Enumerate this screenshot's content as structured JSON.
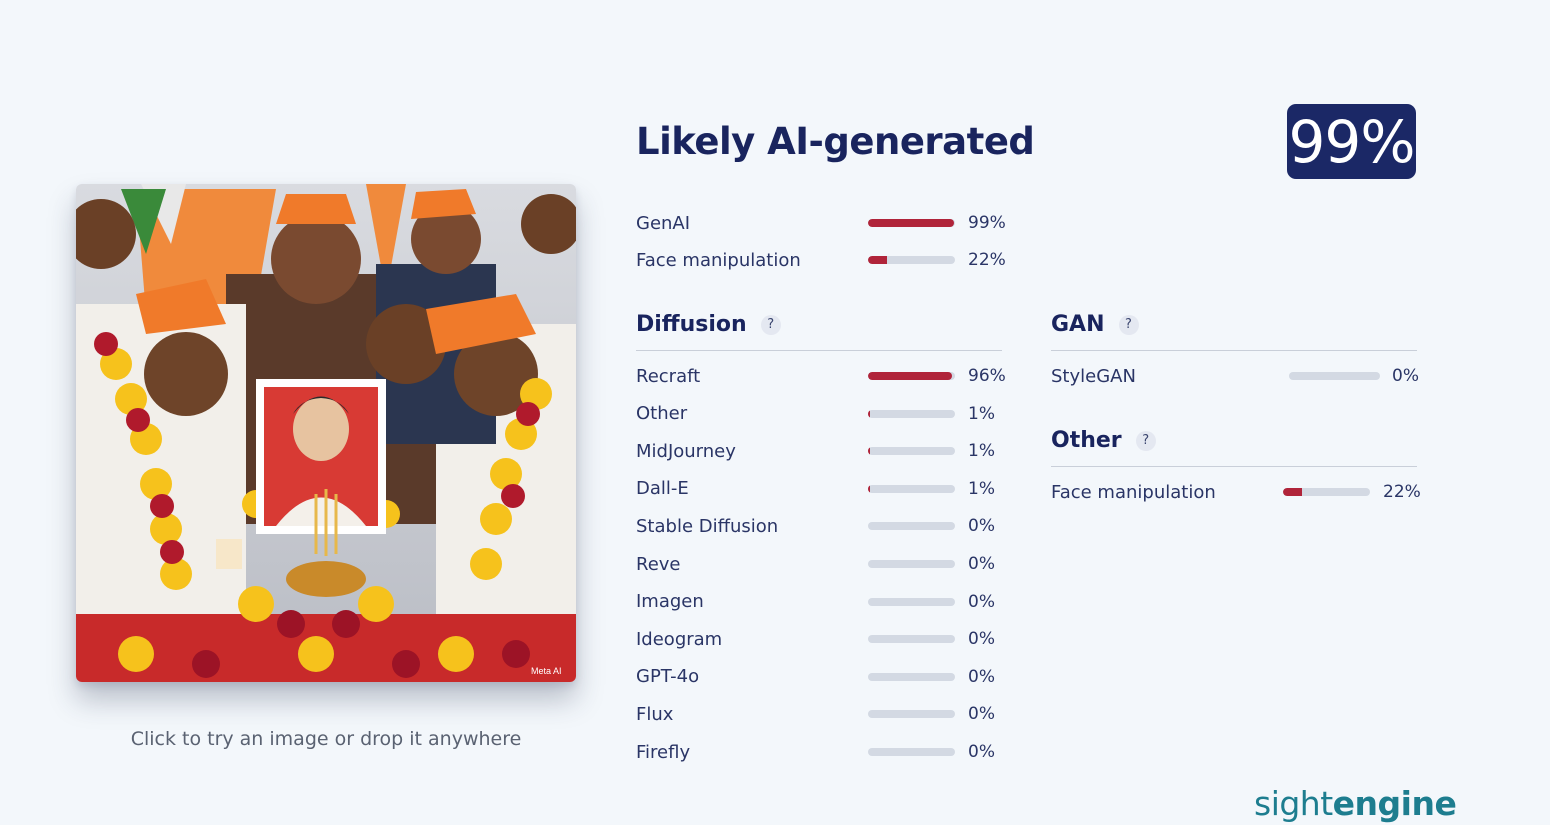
{
  "hint": "Click to try an image or drop it anywhere",
  "verdict": "Likely AI-generated",
  "score": "99%",
  "summary": [
    {
      "label": "GenAI",
      "value": 0.99,
      "pct": "99%"
    },
    {
      "label": "Face manipulation",
      "value": 0.22,
      "pct": "22%"
    }
  ],
  "diffusion": {
    "title": "Diffusion",
    "help": "?",
    "items": [
      {
        "label": "Recraft",
        "value": 0.96,
        "pct": "96%"
      },
      {
        "label": "Other",
        "value": 0.01,
        "pct": "1%"
      },
      {
        "label": "MidJourney",
        "value": 0.01,
        "pct": "1%"
      },
      {
        "label": "Dall-E",
        "value": 0.01,
        "pct": "1%"
      },
      {
        "label": "Stable Diffusion",
        "value": 0,
        "pct": "0%"
      },
      {
        "label": "Reve",
        "value": 0,
        "pct": "0%"
      },
      {
        "label": "Imagen",
        "value": 0,
        "pct": "0%"
      },
      {
        "label": "Ideogram",
        "value": 0,
        "pct": "0%"
      },
      {
        "label": "GPT-4o",
        "value": 0,
        "pct": "0%"
      },
      {
        "label": "Flux",
        "value": 0,
        "pct": "0%"
      },
      {
        "label": "Firefly",
        "value": 0,
        "pct": "0%"
      }
    ]
  },
  "gan": {
    "title": "GAN",
    "help": "?",
    "items": [
      {
        "label": "StyleGAN",
        "value": 0,
        "pct": "0%"
      }
    ]
  },
  "other": {
    "title": "Other",
    "help": "?",
    "items": [
      {
        "label": "Face manipulation",
        "value": 0.22,
        "pct": "22%"
      }
    ]
  },
  "brand": {
    "part1": "sight",
    "part2": "engine"
  },
  "image_watermark": "Meta AI",
  "colors": {
    "accent": "#b0243a",
    "badge": "#1b2866",
    "brand": "#1d7d8f",
    "track": "#d3d9e3"
  }
}
